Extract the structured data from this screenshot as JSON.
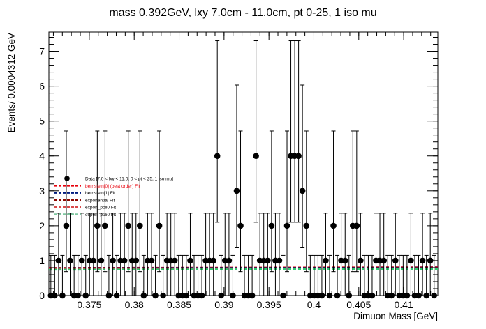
{
  "chart_data": {
    "type": "scatter",
    "title": "mass 0.392GeV, lxy 7.0cm - 11.0cm, pt 0-25, 1 iso mu",
    "xlabel": "Dimuon Mass [GeV]",
    "ylabel": "Events/ 0.0004312 GeV",
    "xlim": [
      0.3705,
      0.4138
    ],
    "ylim": [
      0,
      7.55
    ],
    "x_ticks": [
      0.375,
      0.38,
      0.385,
      0.39,
      0.395,
      0.4,
      0.405,
      0.41
    ],
    "x_tick_labels": [
      "0.375",
      "0.38",
      "0.385",
      "0.39",
      "0.395",
      "0.4",
      "0.405",
      "0.41"
    ],
    "y_ticks": [
      0,
      1,
      2,
      3,
      4,
      5,
      6,
      7
    ],
    "y_tick_labels": [
      "0",
      "1",
      "2",
      "3",
      "4",
      "5",
      "6",
      "7"
    ],
    "bin_width": 0.0004312,
    "data_series": {
      "name": "Data [7.0 < lxy < 11.0, 0 < pt < 25, 1 iso mu]",
      "color": "#000000",
      "x": [
        0.37072,
        0.37115,
        0.37158,
        0.37201,
        0.37244,
        0.37287,
        0.37331,
        0.37374,
        0.37417,
        0.3746,
        0.37503,
        0.37546,
        0.37589,
        0.37632,
        0.37675,
        0.37718,
        0.37762,
        0.37805,
        0.37848,
        0.37891,
        0.37934,
        0.37977,
        0.3802,
        0.38063,
        0.38106,
        0.38149,
        0.38193,
        0.38236,
        0.38279,
        0.38322,
        0.38365,
        0.38408,
        0.38451,
        0.38494,
        0.38537,
        0.3858,
        0.38624,
        0.38667,
        0.3871,
        0.38753,
        0.38796,
        0.38839,
        0.38882,
        0.38925,
        0.38968,
        0.39011,
        0.39055,
        0.39098,
        0.39141,
        0.39184,
        0.39227,
        0.3927,
        0.39313,
        0.39356,
        0.39399,
        0.39442,
        0.39486,
        0.39529,
        0.39572,
        0.39615,
        0.39658,
        0.39701,
        0.39744,
        0.39787,
        0.3983,
        0.39873,
        0.39917,
        0.3996,
        0.40003,
        0.40046,
        0.40089,
        0.40132,
        0.40175,
        0.40218,
        0.40261,
        0.40304,
        0.40348,
        0.40391,
        0.40434,
        0.40477,
        0.4052,
        0.40563,
        0.40606,
        0.40649,
        0.40692,
        0.40735,
        0.40779,
        0.40822,
        0.40865,
        0.40908,
        0.40951,
        0.40994,
        0.41037,
        0.4108,
        0.41123,
        0.41166,
        0.4121,
        0.41253,
        0.41296,
        0.41339
      ],
      "y": [
        0,
        0,
        1,
        0,
        2,
        1,
        0,
        0,
        1,
        0,
        1,
        1,
        2,
        1,
        2,
        0,
        1,
        0,
        1,
        1,
        2,
        1,
        1,
        2,
        0,
        1,
        1,
        0,
        2,
        0,
        1,
        1,
        1,
        0,
        0,
        0,
        1,
        0,
        0,
        0,
        1,
        1,
        1,
        4,
        0,
        1,
        1,
        0,
        3,
        2,
        0,
        0,
        0,
        4,
        1,
        1,
        1,
        2,
        1,
        1,
        0,
        2,
        4,
        4,
        4,
        3,
        2,
        0,
        0,
        0,
        0,
        1,
        0,
        2,
        0,
        1,
        1,
        0,
        2,
        2,
        1,
        0,
        0,
        0,
        1,
        1,
        1,
        0,
        0,
        1,
        0,
        0,
        0,
        1,
        0,
        0,
        1,
        0,
        1,
        0
      ]
    },
    "fit_series": [
      {
        "name": "bernstein[0] (best order) Fit",
        "color": "#e8000b",
        "y_start": 0.79,
        "y_end": 0.81
      },
      {
        "name": "bernstein[1] Fit",
        "color": "#001c7f",
        "y_start": 0.79,
        "y_end": 0.81
      },
      {
        "name": "exponential Fit",
        "color": "#8c0800",
        "y_start": 0.79,
        "y_end": 0.81
      },
      {
        "name": "expon_poli0 Fit",
        "color": "#ff2c2c",
        "y_start": 0.79,
        "y_end": 0.81
      },
      {
        "name": "expon_poli0 Fit",
        "color": "#2ecc71",
        "y_start": 0.79,
        "y_end": 0.81
      }
    ],
    "legend": {
      "placement": "left-center",
      "entries": [
        {
          "label": "Data [7.0 < lxy < 11.0, 0 < pt < 25, 1 iso mu]",
          "color": "#000000",
          "marker": "point",
          "text_color": "#000000"
        },
        {
          "label": "bernstein[0] (best order) Fit",
          "color": "#e8000b",
          "marker": "dashed-line",
          "text_color": "#e8000b"
        },
        {
          "label": "bernstein[1] Fit",
          "color": "#001c7f",
          "marker": "dashed-line",
          "text_color": "#000000"
        },
        {
          "label": "exponential Fit",
          "color": "#8c0800",
          "marker": "dashed-line",
          "text_color": "#000000"
        },
        {
          "label": "expon_poli0 Fit",
          "color": "#d94a4a",
          "marker": "dashed-line",
          "text_color": "#000000"
        },
        {
          "label": "expon_poli0 Fit",
          "color": "#7fc7a0",
          "marker": "dashed-line",
          "text_color": "#000000"
        }
      ]
    },
    "grid": false
  }
}
